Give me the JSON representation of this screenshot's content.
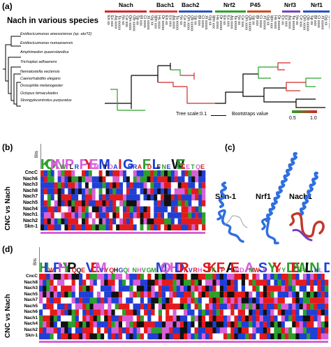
{
  "panel_a": {
    "label": "(a)",
    "title": "Nach in various species",
    "species": [
      "Exidiocicumonas amesoriense (sp. ato?2)",
      "Exidiocicumonas numazoensis",
      "Amphimedon queenslandica",
      "Trichoplax adhaerens",
      "Nematostella vectensis",
      "Caenorhabditis elegans",
      "Drosophila melanogaster",
      "Octopus bimaculoides",
      "Strongylocentrotus purpuratus"
    ],
    "groups": [
      {
        "label": "Nach",
        "color": "#d62728"
      },
      {
        "label": "Bach1",
        "color": "#e03a3a"
      },
      {
        "label": "Bach2",
        "color": "#2b50c8"
      },
      {
        "label": "Nrf2",
        "color": "#2ca02c"
      },
      {
        "label": "P45",
        "color": "#d2491e"
      },
      {
        "label": "Nrf3",
        "color": "#7a3fc0"
      },
      {
        "label": "Nrf1",
        "color": "#2b50c8"
      }
    ],
    "tree_scale": "Tree scale:0.1",
    "bootstrap_label": "Bootstraps value",
    "bootstrap_min": "0.5",
    "bootstrap_max": "1.0"
  },
  "panel_b": {
    "label": "(b)",
    "bits": "Bits",
    "vertical_label": "CNC vs Nach",
    "sequences": [
      "CncC",
      "Nach6",
      "Nach3",
      "Nach8",
      "Nach7",
      "Nach5",
      "Nach4",
      "Nach1",
      "Nach2",
      "Skn-1"
    ]
  },
  "panel_c": {
    "label": "(c)",
    "structures": [
      "Skn-1",
      "Nrf1",
      "Nach1"
    ]
  },
  "panel_d": {
    "label": "(d)",
    "bits": "Bits",
    "vertical_label": "CNC vs Nach",
    "sequences": [
      "CncC",
      "Nach8",
      "Nach3",
      "Nach5",
      "Nach7",
      "Nach5",
      "Nach6",
      "Nach1",
      "Nach4",
      "Nach2",
      "Skn-1"
    ]
  },
  "colors": {
    "red": "#e41a1c",
    "blue": "#1f3fd6",
    "green": "#2ca02c",
    "black": "#111111",
    "magenta": "#d85fd8",
    "white": "#ffffff",
    "helix": "#2f6fe0"
  }
}
